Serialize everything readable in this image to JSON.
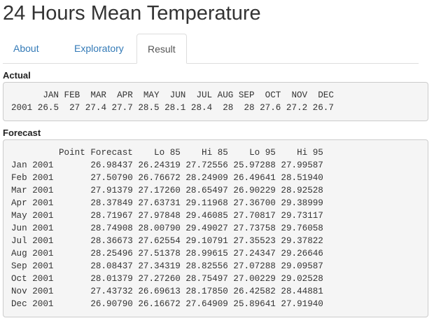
{
  "title": "24 Hours Mean Temperature",
  "tabs": [
    {
      "label": "About"
    },
    {
      "label": "Exploratory"
    },
    {
      "label": "Result",
      "active": true
    }
  ],
  "actual": {
    "heading": "Actual",
    "columns": [
      "JAN",
      "FEB",
      "MAR",
      "APR",
      "MAY",
      "JUN",
      "JUL",
      "AUG",
      "SEP",
      "OCT",
      "NOV",
      "DEC"
    ],
    "rows": [
      {
        "label": "2001",
        "cells": [
          "26.5",
          "27",
          "27.4",
          "27.7",
          "28.5",
          "28.1",
          "28.4",
          "28",
          "28",
          "27.6",
          "27.2",
          "26.7"
        ]
      }
    ]
  },
  "forecast": {
    "heading": "Forecast",
    "columns": [
      "Point Forecast",
      "Lo 85",
      "Hi 85",
      "Lo 95",
      "Hi 95"
    ],
    "rows": [
      {
        "label": "Jan 2001",
        "cells": [
          "26.98437",
          "26.24319",
          "27.72556",
          "25.97288",
          "27.99587"
        ]
      },
      {
        "label": "Feb 2001",
        "cells": [
          "27.50790",
          "26.76672",
          "28.24909",
          "26.49641",
          "28.51940"
        ]
      },
      {
        "label": "Mar 2001",
        "cells": [
          "27.91379",
          "27.17260",
          "28.65497",
          "26.90229",
          "28.92528"
        ]
      },
      {
        "label": "Apr 2001",
        "cells": [
          "28.37849",
          "27.63731",
          "29.11968",
          "27.36700",
          "29.38999"
        ]
      },
      {
        "label": "May 2001",
        "cells": [
          "28.71967",
          "27.97848",
          "29.46085",
          "27.70817",
          "29.73117"
        ]
      },
      {
        "label": "Jun 2001",
        "cells": [
          "28.74908",
          "28.00790",
          "29.49027",
          "27.73758",
          "29.76058"
        ]
      },
      {
        "label": "Jul 2001",
        "cells": [
          "28.36673",
          "27.62554",
          "29.10791",
          "27.35523",
          "29.37822"
        ]
      },
      {
        "label": "Aug 2001",
        "cells": [
          "28.25496",
          "27.51378",
          "28.99615",
          "27.24347",
          "29.26646"
        ]
      },
      {
        "label": "Sep 2001",
        "cells": [
          "28.08437",
          "27.34319",
          "28.82556",
          "27.07288",
          "29.09587"
        ]
      },
      {
        "label": "Oct 2001",
        "cells": [
          "28.01379",
          "27.27260",
          "28.75497",
          "27.00229",
          "29.02528"
        ]
      },
      {
        "label": "Nov 2001",
        "cells": [
          "27.43732",
          "26.69613",
          "28.17850",
          "26.42582",
          "28.44881"
        ]
      },
      {
        "label": "Dec 2001",
        "cells": [
          "26.90790",
          "26.16672",
          "27.64909",
          "25.89641",
          "27.91940"
        ]
      }
    ]
  }
}
